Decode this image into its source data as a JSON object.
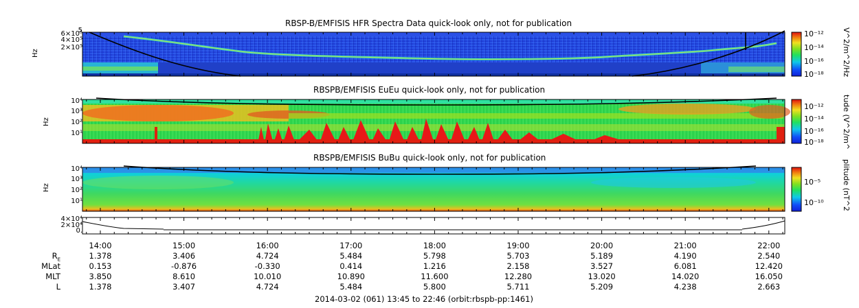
{
  "chart_data": [
    {
      "type": "heatmap",
      "title": "RBSP-B/EMFISIS  HFR Spectra Data quick-look only, not for publication",
      "ylabel": "Hz",
      "yticks": [
        "6×10⁵",
        "4×10⁵",
        "2×10⁵"
      ],
      "top_tick": "5",
      "colorbar_label": "V^2/m^2/Hz",
      "colorbar_ticks": [
        "10⁻¹²",
        "10⁻¹⁴",
        "10⁻¹⁶",
        "10⁻¹⁸"
      ]
    },
    {
      "type": "heatmap",
      "title": "RBSPB/EMFISIS  EuEu quick-look only, not for publication",
      "ylabel": "Hz",
      "yticks": [
        "10⁴",
        "10³",
        "10²",
        "10¹"
      ],
      "colorbar_label": "tude (V^2/m^",
      "colorbar_ticks": [
        "10⁻¹²",
        "10⁻¹⁴",
        "10⁻¹⁶",
        "10⁻¹⁸"
      ]
    },
    {
      "type": "heatmap",
      "title": "RBSPB/EMFISIS  BuBu quick-look only, not for publication",
      "ylabel": "Hz",
      "yticks": [
        "10⁴",
        "10³",
        "10²",
        "10¹"
      ],
      "colorbar_label": "plitude (nT^2",
      "colorbar_ticks": [
        "10⁻⁵",
        "10⁻¹⁰"
      ]
    },
    {
      "type": "line",
      "title": "",
      "yticks": [
        "4×10⁴",
        "2×10⁴",
        "0."
      ]
    }
  ],
  "time_axis": [
    "14:00",
    "15:00",
    "16:00",
    "17:00",
    "18:00",
    "19:00",
    "20:00",
    "21:00",
    "22:00"
  ],
  "ephemeris": [
    {
      "label": "R",
      "sub": "E",
      "values": [
        "1.378",
        "3.406",
        "4.724",
        "5.484",
        "5.798",
        "5.703",
        "5.189",
        "4.190",
        "2.540"
      ]
    },
    {
      "label": "MLat",
      "sub": "",
      "values": [
        "0.153",
        "-0.876",
        "-0.330",
        "0.414",
        "1.216",
        "2.158",
        "3.527",
        "6.081",
        "12.420"
      ]
    },
    {
      "label": "MLT",
      "sub": "",
      "values": [
        "3.850",
        "8.610",
        "10.010",
        "10.890",
        "11.600",
        "12.280",
        "13.020",
        "14.020",
        "16.050"
      ]
    },
    {
      "label": "L",
      "sub": "",
      "values": [
        "1.378",
        "3.407",
        "4.724",
        "5.484",
        "5.800",
        "5.711",
        "5.209",
        "4.238",
        "2.663"
      ]
    }
  ],
  "footer": "2014-03-02 (061) 13:45 to 22:46 (orbit:rbspb-pp:1461)"
}
